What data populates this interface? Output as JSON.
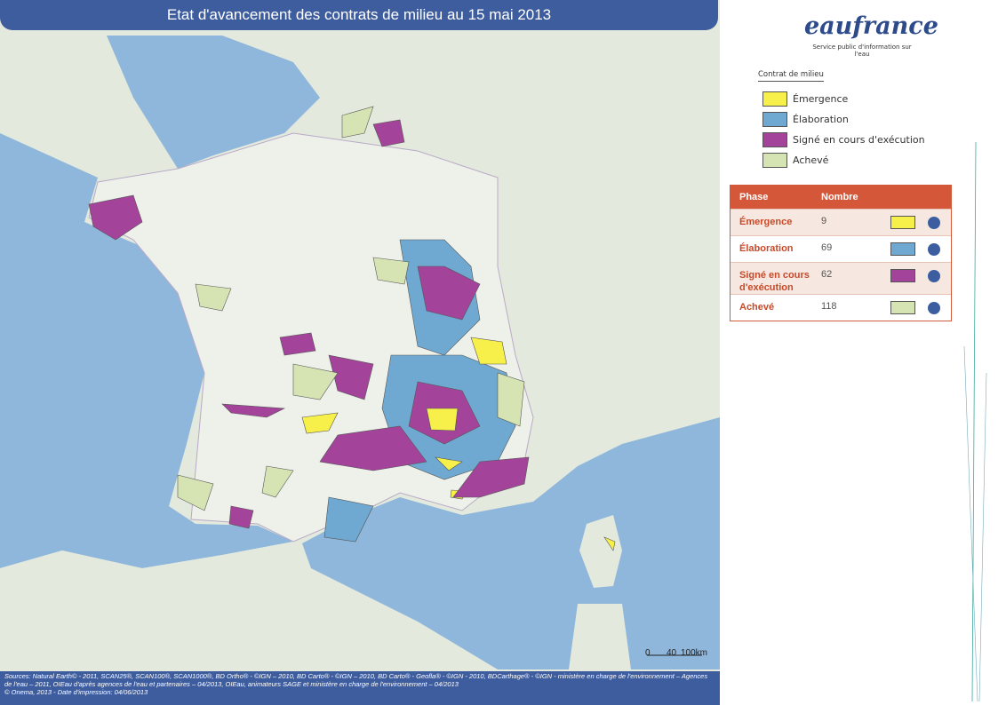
{
  "header": {
    "title": "Etat d'avancement des contrats de milieu au 15 mai 2013"
  },
  "logo": {
    "brand": "eaufrance",
    "tagline": "Service public d'information sur l'eau"
  },
  "legend": {
    "title": "Contrat de milieu",
    "items": [
      {
        "label": "Émergence",
        "color": "#f7ef4a"
      },
      {
        "label": "Élaboration",
        "color": "#6fa8d0"
      },
      {
        "label": "Signé en cours d'exécution",
        "color": "#a3449a"
      },
      {
        "label": "Achevé",
        "color": "#d6e4b4"
      }
    ]
  },
  "table": {
    "headers": [
      "Phase",
      "Nombre"
    ],
    "rows": [
      {
        "phase": "Émergence",
        "count": 9,
        "color": "#f7ef4a"
      },
      {
        "phase": "Élaboration",
        "count": 69,
        "color": "#6fa8d0"
      },
      {
        "phase": "Signé en cours d'exécution",
        "count": 62,
        "color": "#a3449a"
      },
      {
        "phase": "Achevé",
        "count": 118,
        "color": "#d6e4b4"
      }
    ]
  },
  "scale": {
    "labels": [
      "0",
      "40",
      "100km"
    ]
  },
  "footer": {
    "sources": "Sources: Natural Earth© - 2011, SCAN25®, SCAN100®, SCAN1000®, BD Ortho® - ©IGN – 2010, BD Carto® - ©IGN – 2010, BD Carto® - Geofla® - ©IGN - 2010, BDCarthage® - ©IGN - ministère en charge de l'environnement – Agences de l'eau – 2011, OIEau d'après agences de l'eau et partenaires – 04/2013, OIEau, animateurs SAGE et ministère en charge de l'environnement – 04/2013",
    "copyright": "© Onema, 2013 - Date d'impression: 04/06/2013"
  }
}
